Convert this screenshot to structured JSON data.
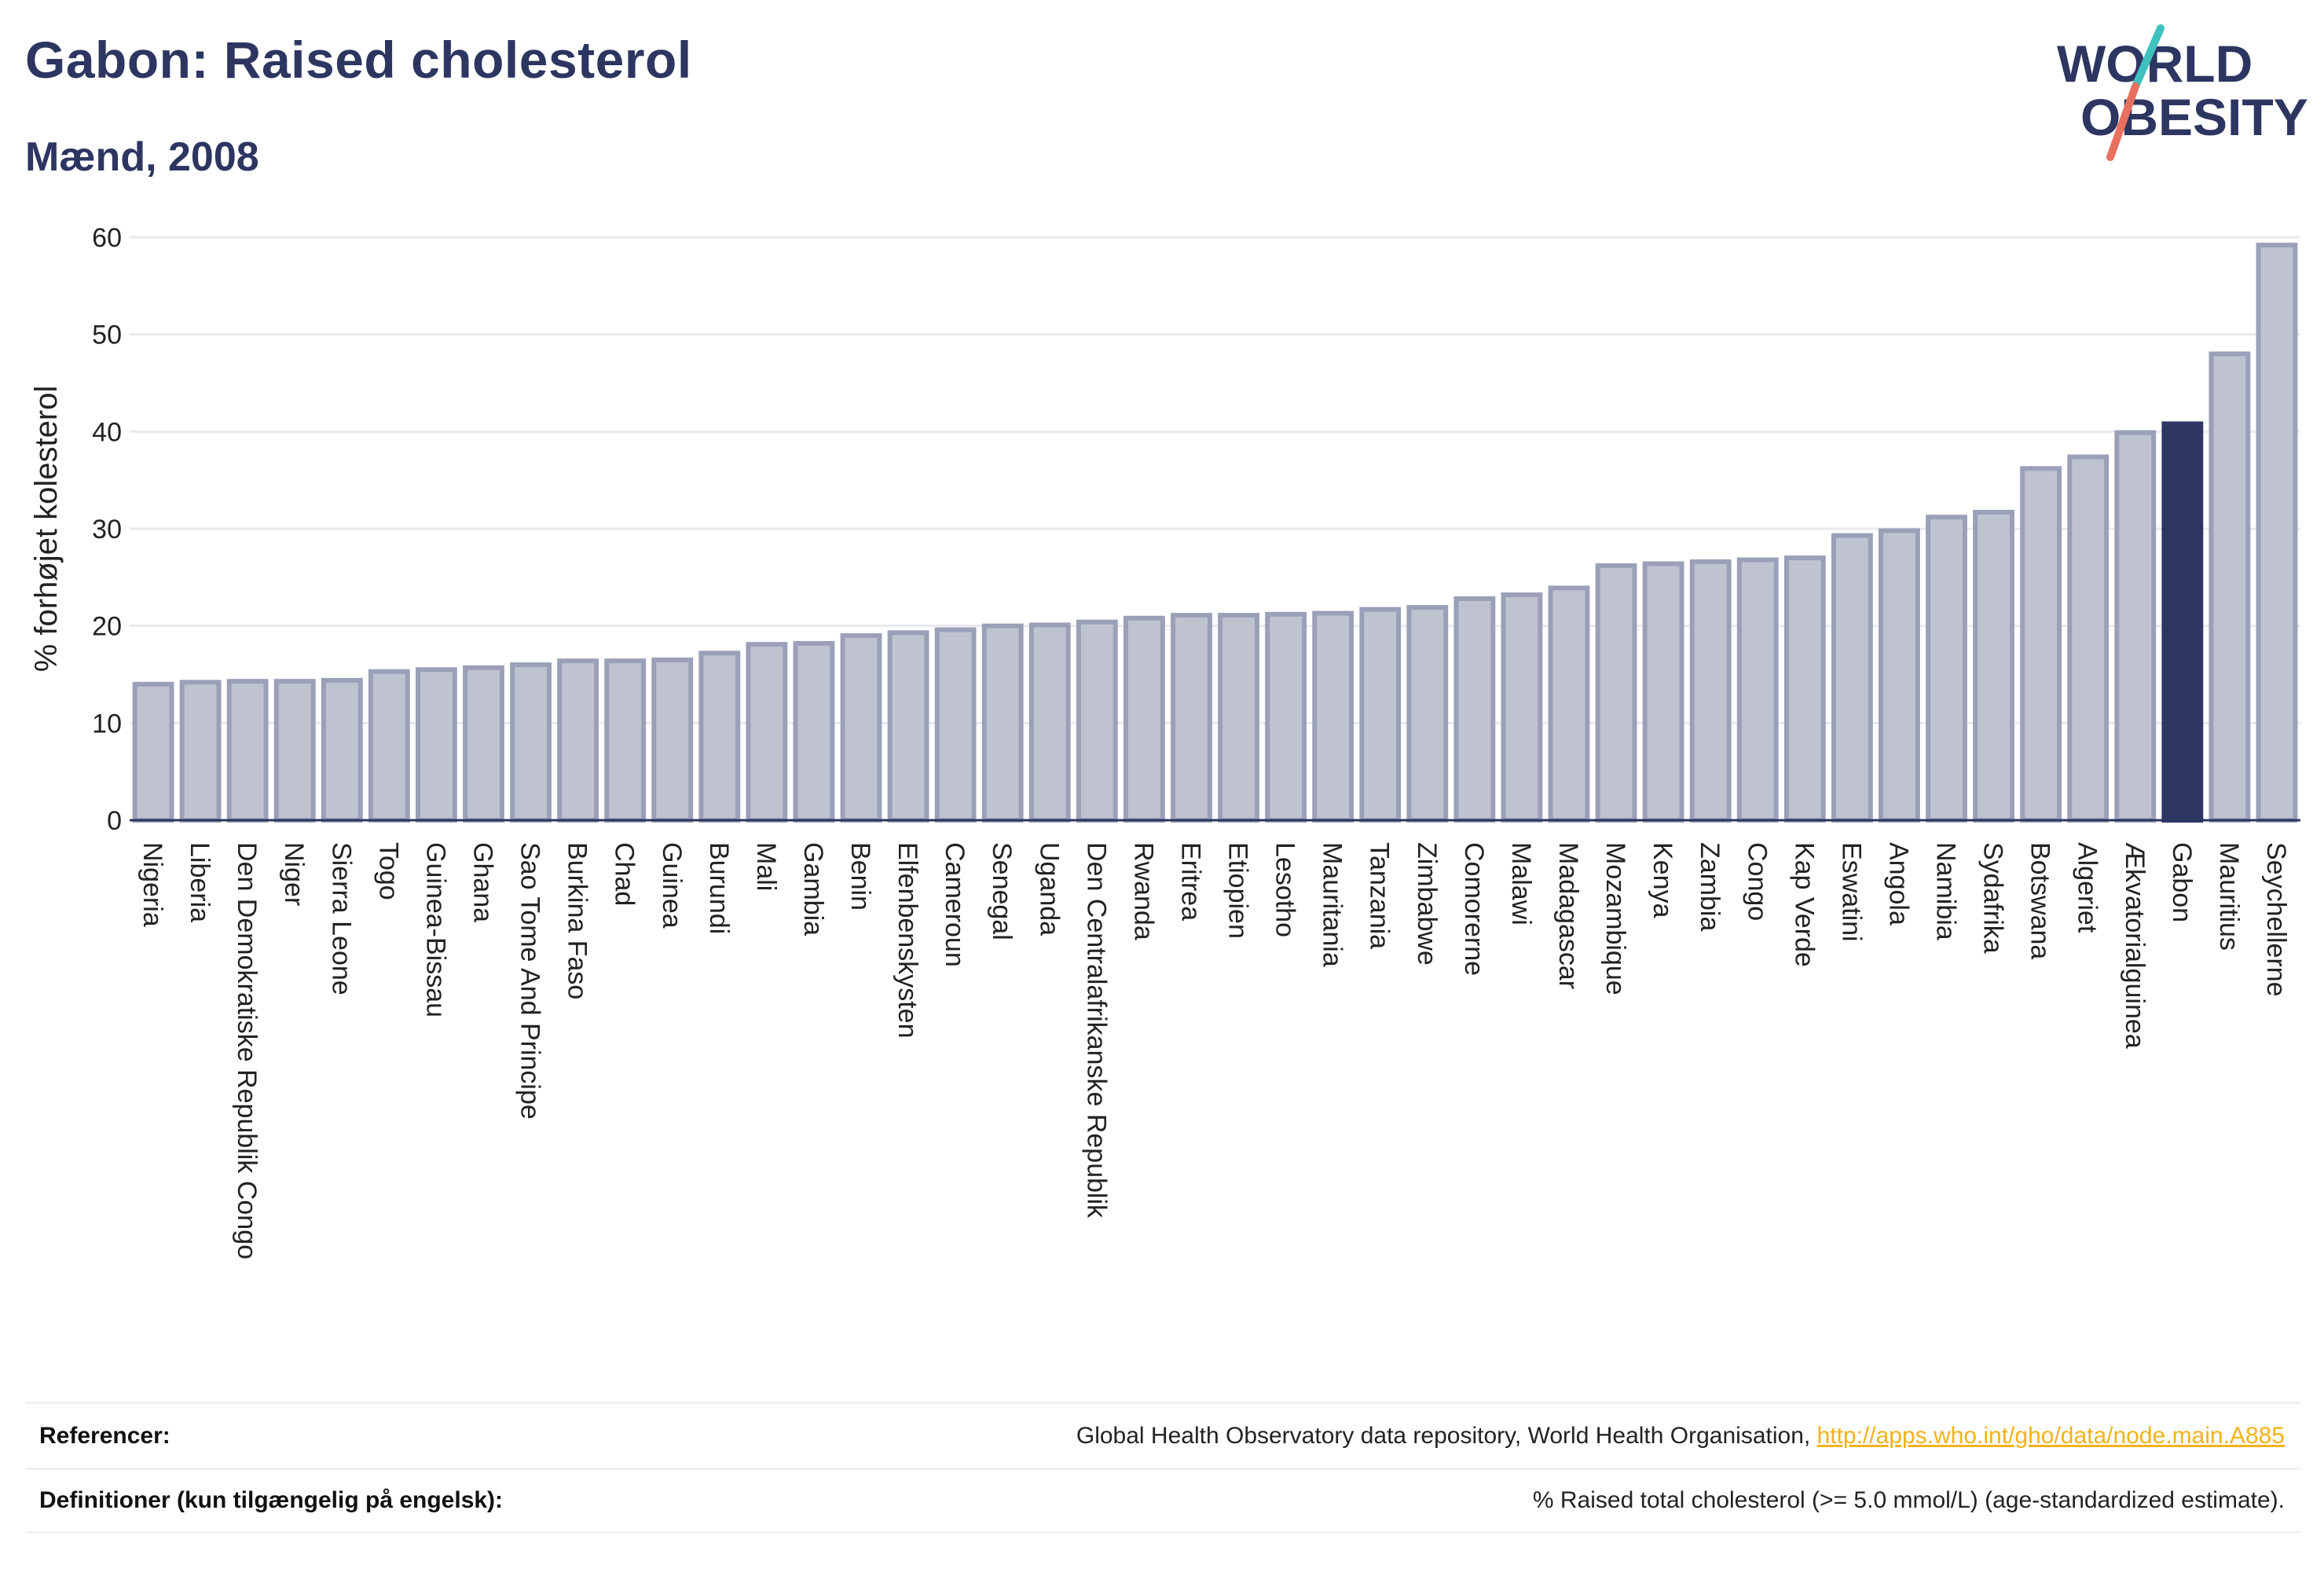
{
  "header": {
    "title": "Gabon: Raised cholesterol",
    "subtitle": "Mænd, 2008"
  },
  "logo": {
    "line1": "WORLD",
    "line2": "OBESITY",
    "slash_colors": [
      "#3fc1c0",
      "#e8705f"
    ],
    "text_color": "#2d3561"
  },
  "chart_data": {
    "type": "bar",
    "title": "Gabon: Raised cholesterol",
    "subtitle": "Mænd, 2008",
    "xlabel": "",
    "ylabel": "% forhøjet kolesterol",
    "ylim": [
      0,
      60
    ],
    "yticks": [
      0,
      10,
      20,
      30,
      40,
      50,
      60
    ],
    "grid": true,
    "highlight": "Gabon",
    "colors": {
      "bar_fill": "#bfc3d0",
      "bar_stroke": "#9aa0b8",
      "highlight_fill": "#2d3561",
      "grid": "#e8eaf0",
      "axis": "#2d3561"
    },
    "categories": [
      "Nigeria",
      "Liberia",
      "Den Demokratiske Republik Congo",
      "Niger",
      "Sierra Leone",
      "Togo",
      "Guinea-Bissau",
      "Ghana",
      "Sao Tome And Principe",
      "Burkina Faso",
      "Chad",
      "Guinea",
      "Burundi",
      "Mali",
      "Gambia",
      "Benin",
      "Elfenbenskysten",
      "Cameroun",
      "Senegal",
      "Uganda",
      "Den Centralafrikanske Republik",
      "Rwanda",
      "Eritrea",
      "Etiopien",
      "Lesotho",
      "Mauritania",
      "Tanzania",
      "Zimbabwe",
      "Comorerne",
      "Malawi",
      "Madagascar",
      "Mozambique",
      "Kenya",
      "Zambia",
      "Congo",
      "Kap Verde",
      "Eswatini",
      "Angola",
      "Namibia",
      "Sydafrika",
      "Botswana",
      "Algeriet",
      "Ækvatorialguinea",
      "Gabon",
      "Mauritius",
      "Seychellerne"
    ],
    "values": [
      14.0,
      14.2,
      14.3,
      14.3,
      14.4,
      15.3,
      15.5,
      15.7,
      16.0,
      16.4,
      16.4,
      16.5,
      17.2,
      18.1,
      18.2,
      19.0,
      19.3,
      19.6,
      20.0,
      20.1,
      20.4,
      20.8,
      21.1,
      21.1,
      21.2,
      21.3,
      21.7,
      21.9,
      22.8,
      23.2,
      23.9,
      26.2,
      26.4,
      26.6,
      26.8,
      27.0,
      29.3,
      29.8,
      31.2,
      31.7,
      36.2,
      37.4,
      39.9,
      40.8,
      48.0,
      59.2
    ]
  },
  "footer": {
    "references_label": "Referencer:",
    "references_text": "Global Health Observatory data repository, World Health Organisation,",
    "references_link": "http://apps.who.int/gho/data/node.main.A885",
    "definitions_label": "Definitioner (kun tilgængelig på engelsk):",
    "definitions_text": "% Raised total cholesterol (>= 5.0 mmol/L) (age-standardized estimate)."
  }
}
